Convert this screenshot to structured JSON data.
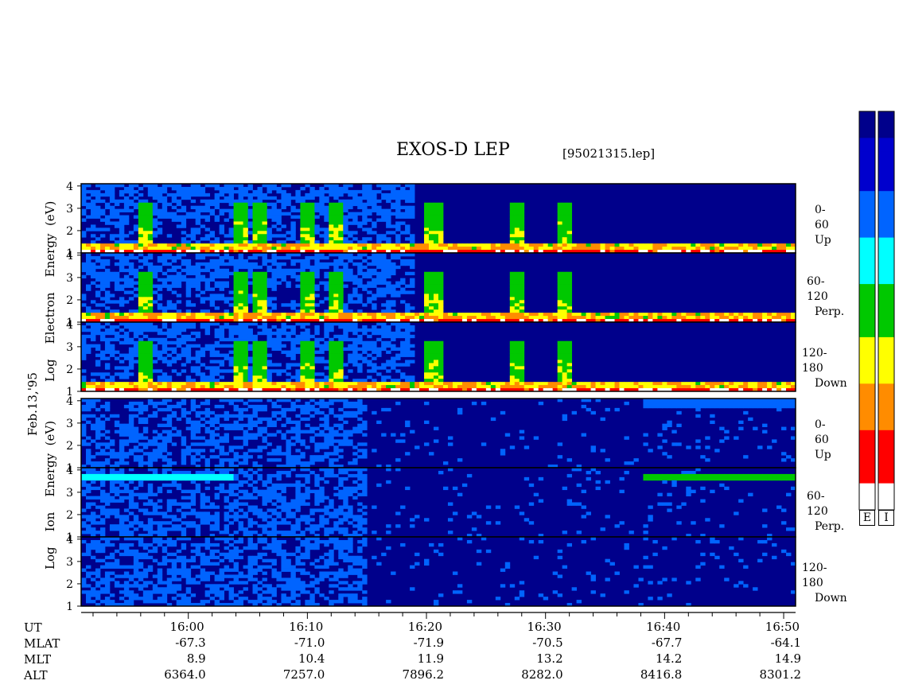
{
  "header": {
    "title": "EXOS-D LEP",
    "file": "[95021315.lep]"
  },
  "date_label": "Feb.13,'95",
  "electron_panel": {
    "ylabel_parts": [
      "Log",
      "Electron",
      "Energy",
      "(eV)"
    ],
    "channels": [
      {
        "range": "0-60",
        "dir": "Up"
      },
      {
        "range": "60-120",
        "dir": "Perp."
      },
      {
        "range": "120-180",
        "dir": "Down"
      }
    ]
  },
  "ion_panel": {
    "ylabel_parts": [
      "Log",
      "Ion",
      "Energy",
      "(eV)"
    ],
    "channels": [
      {
        "range": "0-60",
        "dir": "Up"
      },
      {
        "range": "60-120",
        "dir": "Perp."
      },
      {
        "range": "120-180",
        "dir": "Down"
      }
    ]
  },
  "colorbars": {
    "electron_label": "E",
    "ion_label": "I"
  },
  "colors": {
    "background": "#00008b",
    "spectrum": [
      "#ffffff",
      "#ff0000",
      "#ff8c00",
      "#ffff00",
      "#00c800",
      "#00ffff",
      "#0064ff",
      "#0000cd",
      "#00008b"
    ]
  },
  "chart_data": {
    "type": "heatmap",
    "xlabel": "UT",
    "ylabel": "Log Energy (eV)",
    "ytick_labels": [
      "1",
      "2",
      "3",
      "4"
    ],
    "ylim": [
      1,
      4.1
    ],
    "xtick_labels": [
      "16:00",
      "16:10",
      "16:20",
      "16:30",
      "16:40",
      "16:50"
    ],
    "xlim_minutes": [
      -9,
      51
    ],
    "xticks_minutes": [
      0,
      10,
      20,
      30,
      40,
      50
    ],
    "ephemeris": {
      "MLAT": [
        "-67.3",
        "-71.0",
        "-71.9",
        "-70.5",
        "-67.7",
        "-64.1"
      ],
      "MLT": [
        "8.9",
        "10.4",
        "11.9",
        "13.2",
        "14.2",
        "14.9"
      ],
      "ALT": [
        "6364.0",
        "7257.0",
        "7896.2",
        "8282.0",
        "8416.8",
        "8301.2"
      ]
    },
    "panels": [
      "Electron 0-60 Up",
      "Electron 60-120 Perp.",
      "Electron 120-180 Down",
      "Ion 0-60 Up",
      "Ion 60-120 Perp.",
      "Ion 120-180 Down"
    ],
    "electron_low_energy_band_log_eV": 1.3,
    "electron_bursts_UT": [
      "15:56",
      "16:04",
      "16:06",
      "16:10",
      "16:12",
      "16:20",
      "16:27",
      "16:31"
    ],
    "ion_high_energy_band_log_eV_after": "16:38"
  }
}
